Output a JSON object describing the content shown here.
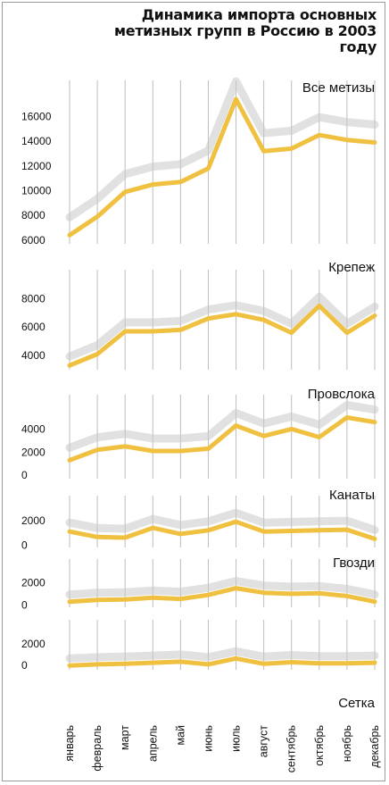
{
  "title": "Динамика импорта основных метизных групп в Россию в 2003 году",
  "chart_data": {
    "type": "line",
    "x_labels": [
      "январь",
      "февраль",
      "март",
      "апрель",
      "май",
      "июнь",
      "июль",
      "август",
      "сентябрь",
      "октябрь",
      "ноябрь",
      "декабрь"
    ],
    "grid": "vertical",
    "colors": {
      "series": "#f0c040",
      "shadow": "#c8c8c8",
      "grid": "#bdbdbd",
      "frame": "#9a9a9a"
    },
    "panels": [
      {
        "title": "Все метизы",
        "yticks": [
          6000,
          8000,
          10000,
          12000,
          14000,
          16000
        ],
        "ylim": [
          5700,
          18200
        ],
        "values": [
          6400,
          7900,
          9900,
          10500,
          10700,
          11800,
          17400,
          13200,
          13400,
          14500,
          14100,
          13900
        ]
      },
      {
        "title": "Крепеж",
        "yticks": [
          4000,
          6000,
          8000
        ],
        "ylim": [
          3000,
          9400
        ],
        "values": [
          3300,
          4100,
          5700,
          5700,
          5800,
          6600,
          6900,
          6500,
          5600,
          7500,
          5600,
          6800
        ]
      },
      {
        "title": "Провслока",
        "yticks": [
          0,
          2000,
          4000
        ],
        "ylim": [
          -300,
          6200
        ],
        "values": [
          1300,
          2200,
          2500,
          2100,
          2100,
          2300,
          4300,
          3400,
          4000,
          3300,
          5000,
          4600
        ]
      },
      {
        "title": "Канаты",
        "yticks": [
          0,
          2000
        ],
        "ylim": [
          -200,
          3300
        ],
        "values": [
          1100,
          650,
          600,
          1400,
          900,
          1200,
          1900,
          1100,
          1150,
          1200,
          1250,
          500
        ]
      },
      {
        "title": "Гвозди",
        "yticks": [
          0,
          2000
        ],
        "ylim": [
          -200,
          3300
        ],
        "values": [
          300,
          450,
          500,
          650,
          550,
          900,
          1500,
          1100,
          1000,
          1050,
          800,
          300
        ]
      },
      {
        "title": "Сетка",
        "yticks": [
          0,
          2000
        ],
        "ylim": [
          -400,
          3400
        ],
        "values": [
          0,
          100,
          150,
          250,
          350,
          100,
          650,
          150,
          300,
          200,
          200,
          250
        ]
      }
    ]
  }
}
